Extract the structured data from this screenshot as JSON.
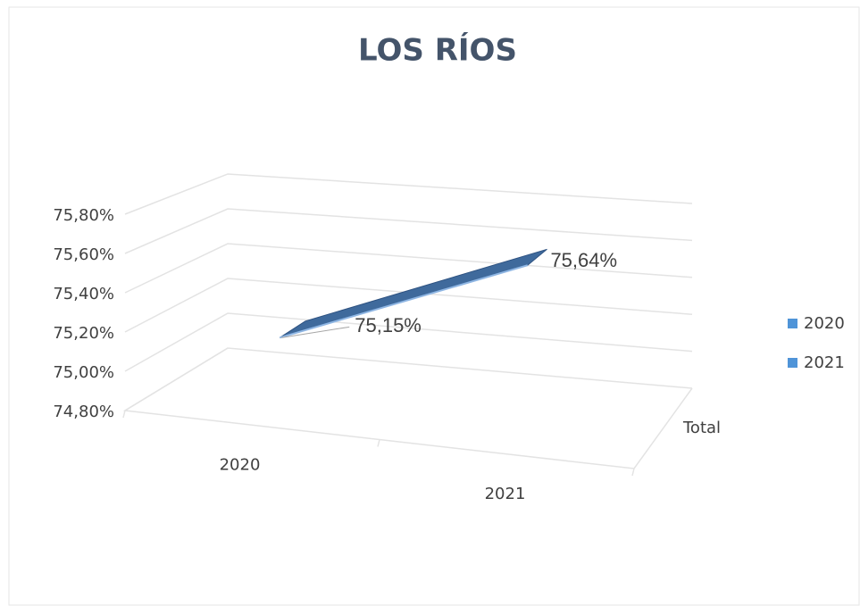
{
  "chart_data": {
    "type": "line3d",
    "title": "LOS RÍOS",
    "categories": [
      "2020",
      "2021"
    ],
    "series": [
      {
        "name": "Total",
        "color": "#3f6a9c",
        "values": [
          75.15,
          75.64
        ],
        "value_labels": [
          "75,15%",
          "75,64%"
        ]
      }
    ],
    "legend": {
      "entries": [
        "2020",
        "2021"
      ],
      "color": "#4f94d8",
      "position": "right"
    },
    "ylim": [
      74.8,
      75.8
    ],
    "yticks": [
      {
        "value": 74.8,
        "label": "74,80%"
      },
      {
        "value": 75.0,
        "label": "75,00%"
      },
      {
        "value": 75.2,
        "label": "75,20%"
      },
      {
        "value": 75.4,
        "label": "75,40%"
      },
      {
        "value": 75.6,
        "label": "75,60%"
      },
      {
        "value": 75.8,
        "label": "75,80%"
      }
    ],
    "grid": true
  }
}
